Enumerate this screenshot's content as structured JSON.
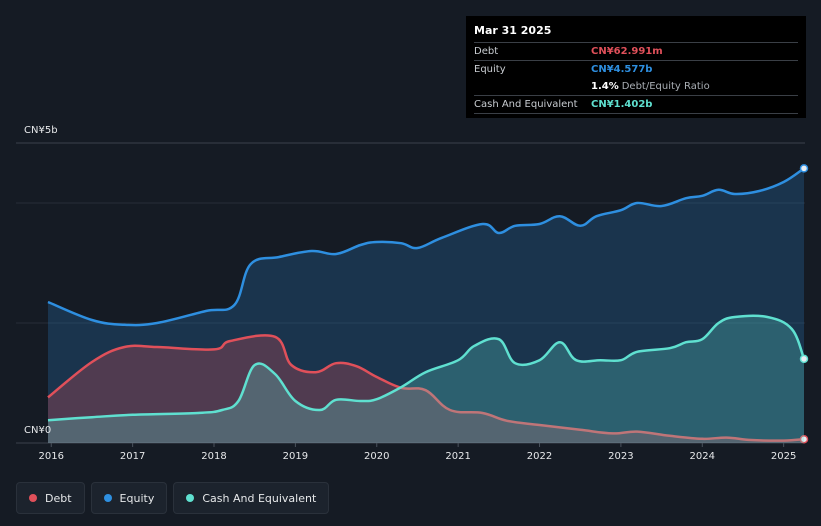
{
  "tooltip": {
    "date": "Mar 31 2025",
    "debt_label": "Debt",
    "debt_value": "CN¥62.991m",
    "equity_label": "Equity",
    "equity_value": "CN¥4.577b",
    "ratio_value": "1.4%",
    "ratio_label": "Debt/Equity Ratio",
    "cash_label": "Cash And Equivalent",
    "cash_value": "CN¥1.402b"
  },
  "colors": {
    "debt": "#e0505a",
    "equity": "#2e8fe0",
    "cash": "#5fe0d0"
  },
  "legend": [
    {
      "label": "Debt",
      "color": "#e0505a"
    },
    {
      "label": "Equity",
      "color": "#2e8fe0"
    },
    {
      "label": "Cash And Equivalent",
      "color": "#5fe0d0"
    }
  ],
  "chart_data": {
    "type": "area",
    "y_top_label": "CN¥5b",
    "y_bottom_label": "CN¥0",
    "ylim": [
      0,
      5
    ],
    "xlim": [
      2015.96,
      2025.25
    ],
    "x_ticks": [
      "2016",
      "2017",
      "2018",
      "2019",
      "2020",
      "2021",
      "2022",
      "2023",
      "2024",
      "2025"
    ],
    "grid": true,
    "legend_position": "bottom-left",
    "series": [
      {
        "name": "Debt",
        "points": [
          [
            2015.96,
            0.76
          ],
          [
            2016.5,
            1.35
          ],
          [
            2016.9,
            1.6
          ],
          [
            2017.3,
            1.6
          ],
          [
            2018.0,
            1.56
          ],
          [
            2018.2,
            1.7
          ],
          [
            2018.75,
            1.77
          ],
          [
            2018.95,
            1.3
          ],
          [
            2019.25,
            1.18
          ],
          [
            2019.5,
            1.33
          ],
          [
            2019.75,
            1.28
          ],
          [
            2020.0,
            1.1
          ],
          [
            2020.3,
            0.92
          ],
          [
            2020.6,
            0.88
          ],
          [
            2020.9,
            0.55
          ],
          [
            2021.3,
            0.5
          ],
          [
            2021.6,
            0.37
          ],
          [
            2022.0,
            0.3
          ],
          [
            2022.5,
            0.22
          ],
          [
            2022.9,
            0.16
          ],
          [
            2023.2,
            0.19
          ],
          [
            2023.6,
            0.12
          ],
          [
            2024.0,
            0.07
          ],
          [
            2024.3,
            0.09
          ],
          [
            2024.6,
            0.05
          ],
          [
            2025.0,
            0.04
          ],
          [
            2025.25,
            0.063
          ]
        ]
      },
      {
        "name": "Equity",
        "points": [
          [
            2015.96,
            2.35
          ],
          [
            2016.5,
            2.05
          ],
          [
            2016.9,
            1.97
          ],
          [
            2017.3,
            2.0
          ],
          [
            2017.9,
            2.2
          ],
          [
            2018.25,
            2.3
          ],
          [
            2018.45,
            2.98
          ],
          [
            2018.8,
            3.1
          ],
          [
            2019.2,
            3.2
          ],
          [
            2019.5,
            3.15
          ],
          [
            2019.8,
            3.3
          ],
          [
            2020.0,
            3.35
          ],
          [
            2020.3,
            3.33
          ],
          [
            2020.5,
            3.25
          ],
          [
            2020.8,
            3.42
          ],
          [
            2021.3,
            3.65
          ],
          [
            2021.5,
            3.5
          ],
          [
            2021.7,
            3.62
          ],
          [
            2022.0,
            3.65
          ],
          [
            2022.25,
            3.78
          ],
          [
            2022.5,
            3.62
          ],
          [
            2022.7,
            3.78
          ],
          [
            2023.0,
            3.88
          ],
          [
            2023.2,
            4.0
          ],
          [
            2023.5,
            3.95
          ],
          [
            2023.8,
            4.08
          ],
          [
            2024.0,
            4.12
          ],
          [
            2024.2,
            4.22
          ],
          [
            2024.4,
            4.15
          ],
          [
            2024.7,
            4.2
          ],
          [
            2025.0,
            4.35
          ],
          [
            2025.25,
            4.577
          ]
        ]
      },
      {
        "name": "Cash And Equivalent",
        "points": [
          [
            2015.96,
            0.38
          ],
          [
            2016.5,
            0.43
          ],
          [
            2017.0,
            0.47
          ],
          [
            2017.8,
            0.5
          ],
          [
            2018.1,
            0.55
          ],
          [
            2018.3,
            0.7
          ],
          [
            2018.5,
            1.3
          ],
          [
            2018.75,
            1.15
          ],
          [
            2019.0,
            0.7
          ],
          [
            2019.3,
            0.55
          ],
          [
            2019.5,
            0.72
          ],
          [
            2019.8,
            0.7
          ],
          [
            2020.0,
            0.73
          ],
          [
            2020.3,
            0.93
          ],
          [
            2020.6,
            1.18
          ],
          [
            2021.0,
            1.38
          ],
          [
            2021.2,
            1.62
          ],
          [
            2021.5,
            1.73
          ],
          [
            2021.7,
            1.33
          ],
          [
            2022.0,
            1.38
          ],
          [
            2022.25,
            1.68
          ],
          [
            2022.45,
            1.38
          ],
          [
            2022.75,
            1.38
          ],
          [
            2023.0,
            1.38
          ],
          [
            2023.2,
            1.52
          ],
          [
            2023.6,
            1.58
          ],
          [
            2023.8,
            1.68
          ],
          [
            2024.0,
            1.73
          ],
          [
            2024.2,
            2.0
          ],
          [
            2024.4,
            2.1
          ],
          [
            2024.8,
            2.1
          ],
          [
            2025.1,
            1.9
          ],
          [
            2025.25,
            1.402
          ]
        ]
      }
    ]
  }
}
